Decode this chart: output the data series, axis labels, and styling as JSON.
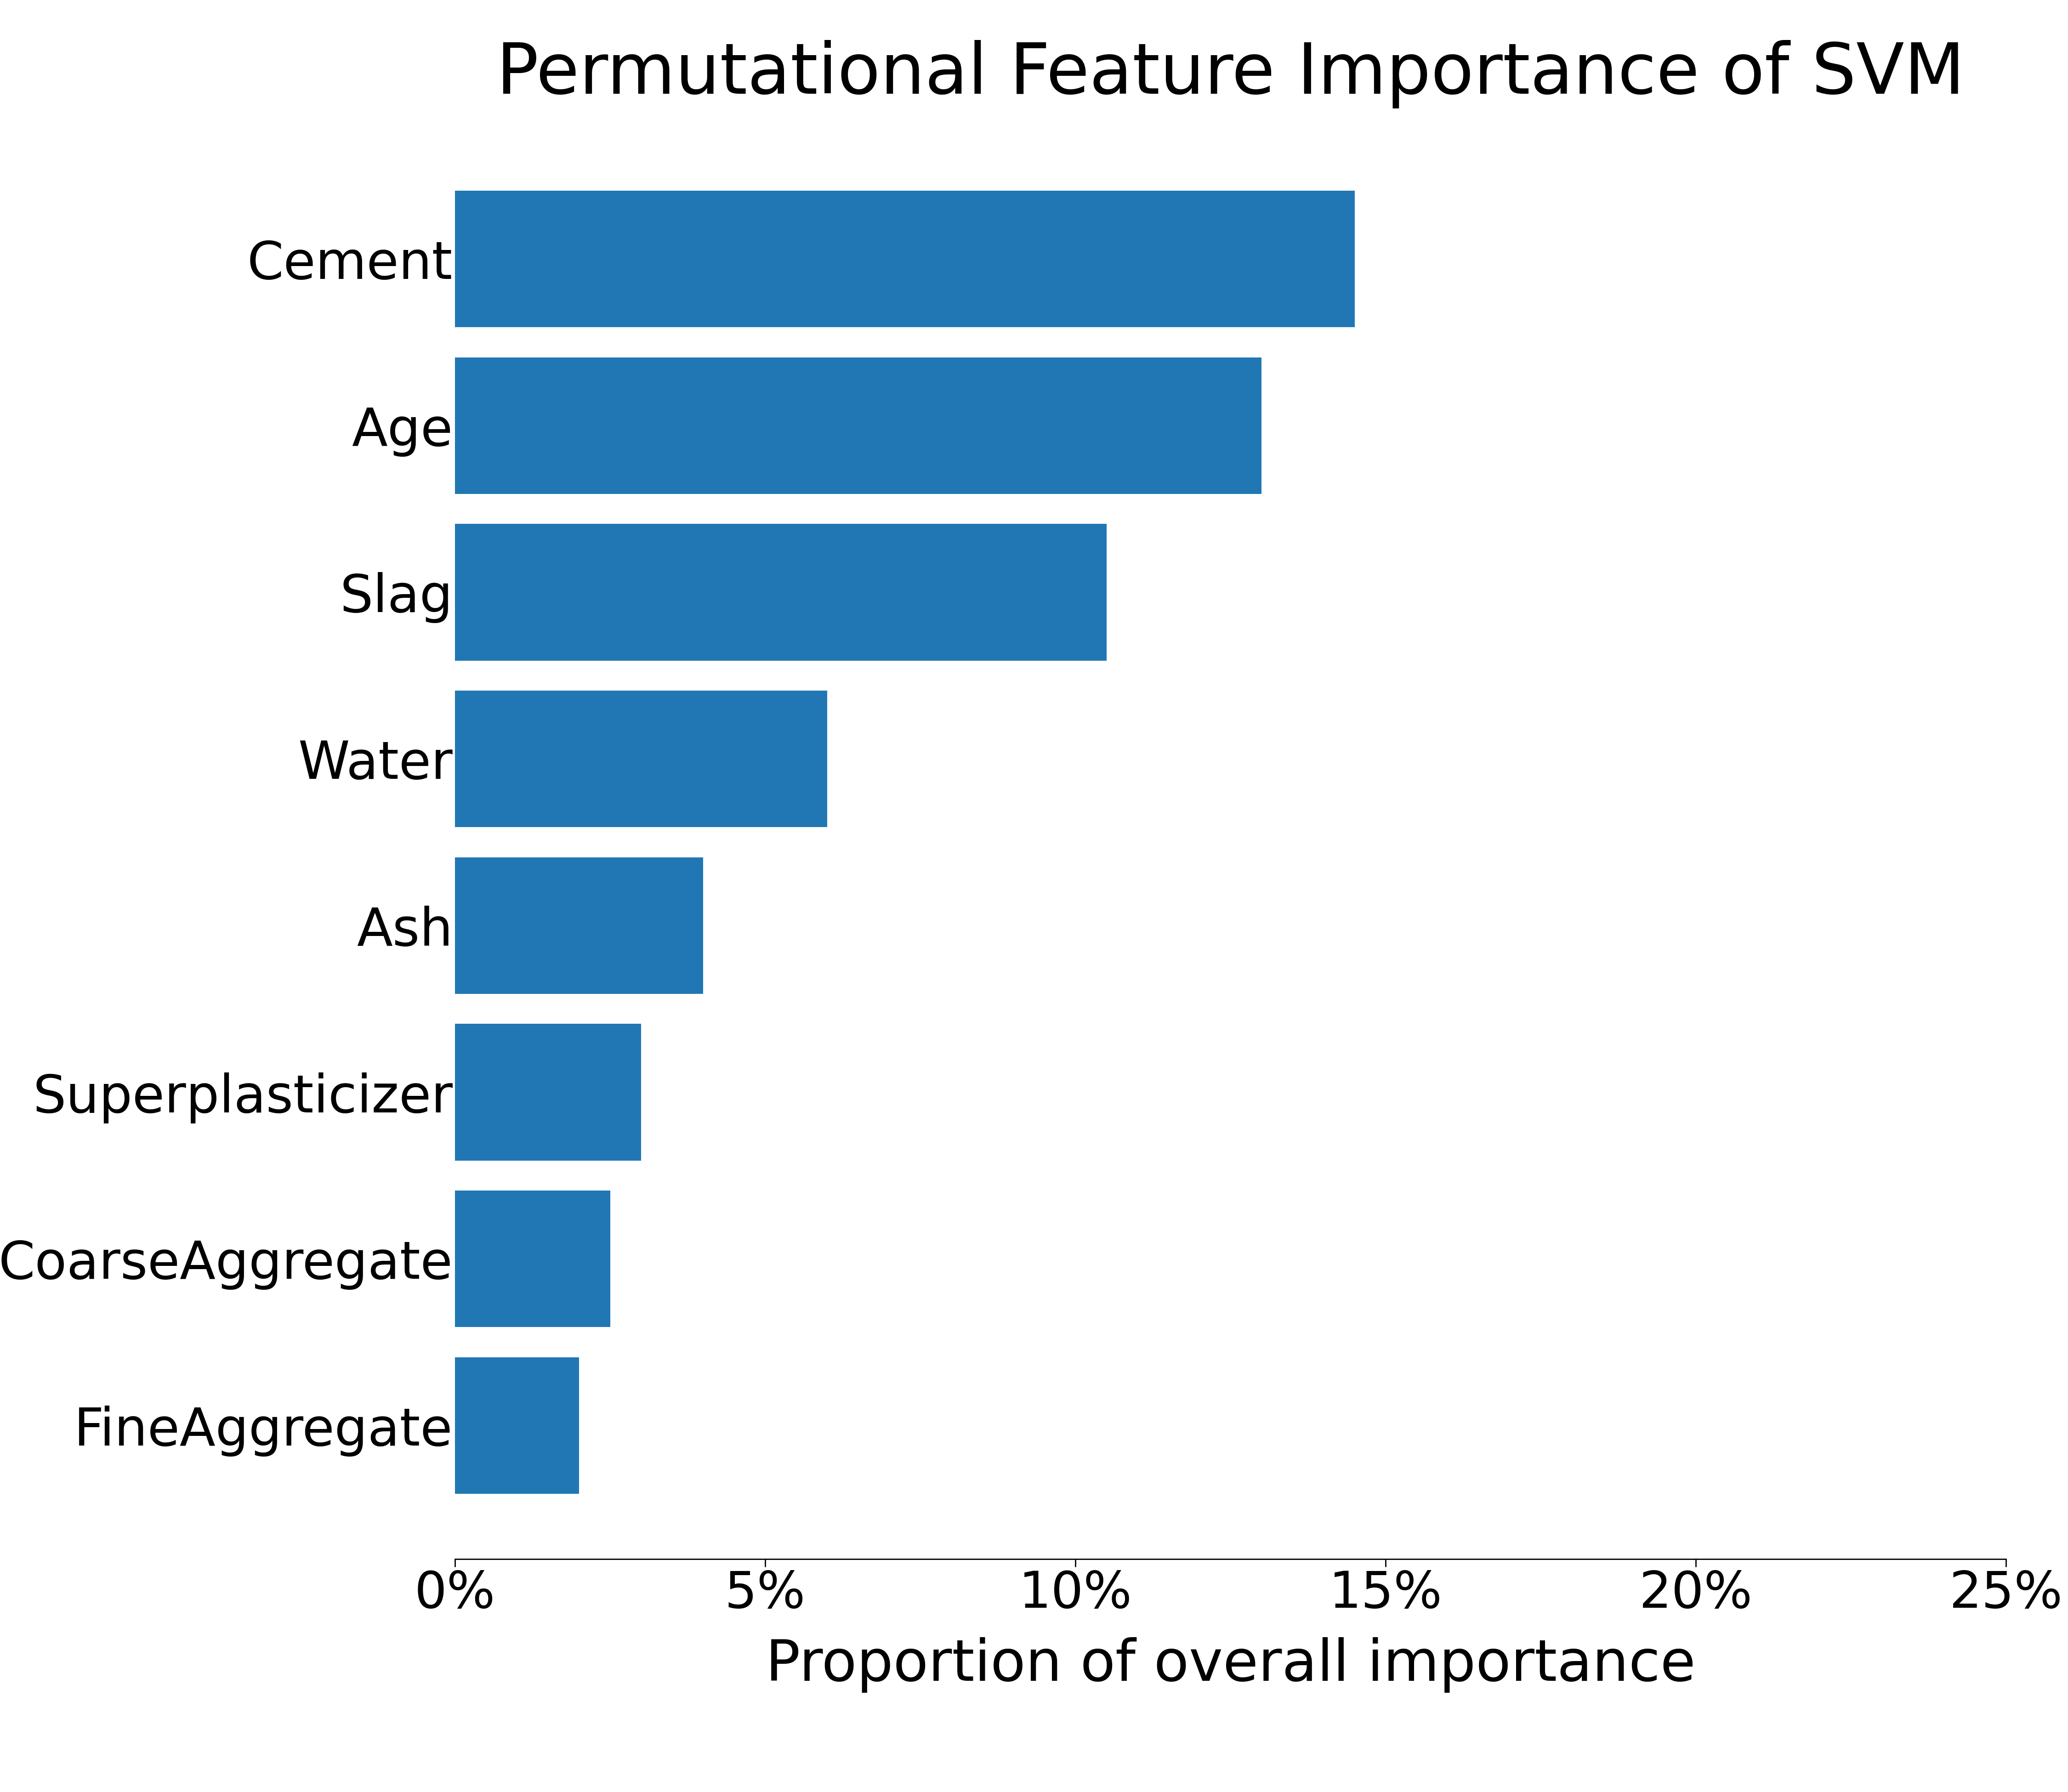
{
  "title": "Permutational Feature Importance of SVM",
  "xlabel": "Proportion of overall importance",
  "categories": [
    "FineAggregate",
    "CoarseAggregate",
    "Superplasticizer",
    "Ash",
    "Water",
    "Slag",
    "Age",
    "Cement"
  ],
  "values": [
    2.0,
    2.5,
    3.0,
    4.0,
    6.0,
    10.5,
    13.0,
    14.5
  ],
  "bar_color": "#2077b4",
  "xlim": [
    0,
    25
  ],
  "xticks": [
    0,
    5,
    10,
    15,
    20,
    25
  ],
  "xticklabels": [
    "0%",
    "5%",
    "10%",
    "15%",
    "20%",
    "25%"
  ],
  "title_fontsize": 110,
  "label_fontsize": 90,
  "tick_fontsize": 80,
  "ytick_fontsize": 82,
  "background_color": "#ffffff",
  "bar_height": 0.82
}
